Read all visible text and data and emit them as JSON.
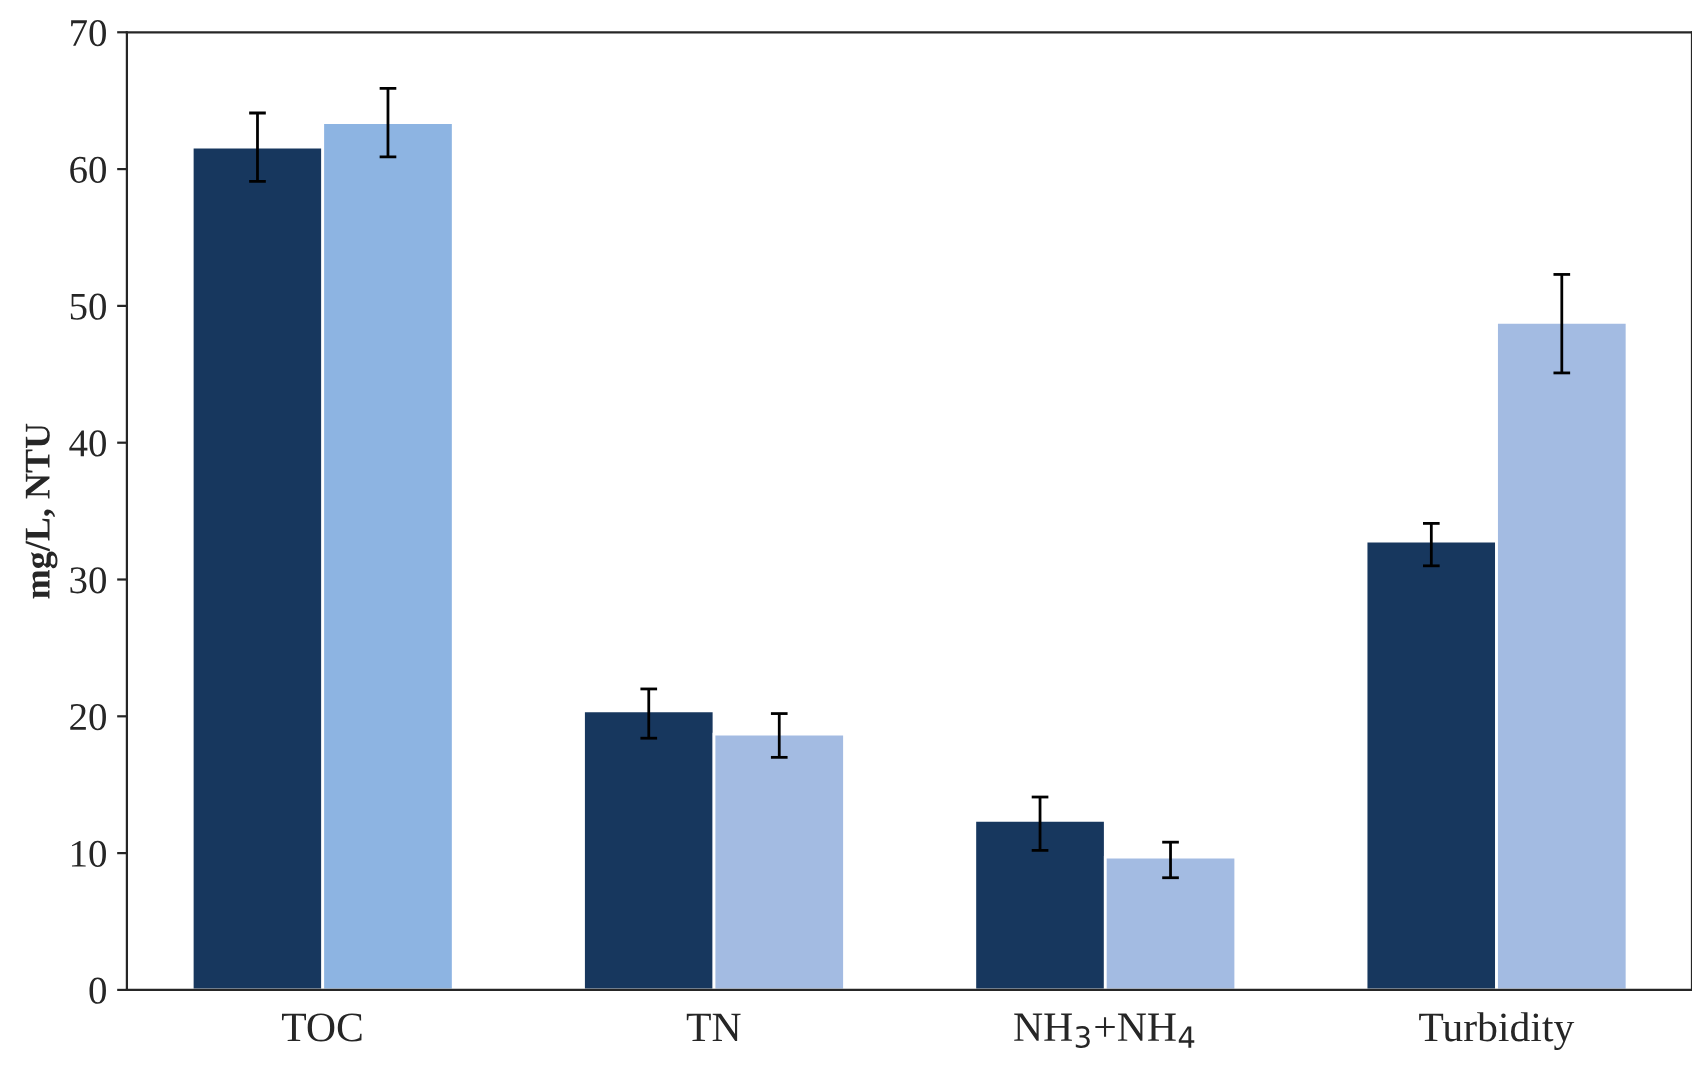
{
  "chart_data": {
    "type": "bar",
    "ylabel": "mg/L, NTU",
    "categories": [
      "TOC",
      "TN",
      "NH$_{3}$+NH$_{4}$",
      "Turbidity"
    ],
    "series": [
      {
        "color": "#17375e",
        "values": [
          61.6,
          20.4,
          12.4,
          32.8
        ],
        "errors": [
          [
            59.1,
            64.1
          ],
          [
            18.4,
            22.0
          ],
          [
            10.2,
            14.1
          ],
          [
            31.0,
            34.1
          ]
        ]
      },
      {
        "colors": [
          "#8db4e2",
          "#a3bbe2",
          "#a3bbe2",
          "#a3bbe2"
        ],
        "values": [
          63.4,
          18.7,
          9.7,
          48.8
        ],
        "errors": [
          [
            60.9,
            65.9
          ],
          [
            17.0,
            20.2
          ],
          [
            8.2,
            10.8
          ],
          [
            45.1,
            52.3
          ]
        ]
      }
    ],
    "ylim": [
      0,
      70
    ],
    "yticks": [
      0,
      10,
      20,
      30,
      40,
      50,
      60,
      70
    ],
    "grid": false,
    "legend": false
  }
}
